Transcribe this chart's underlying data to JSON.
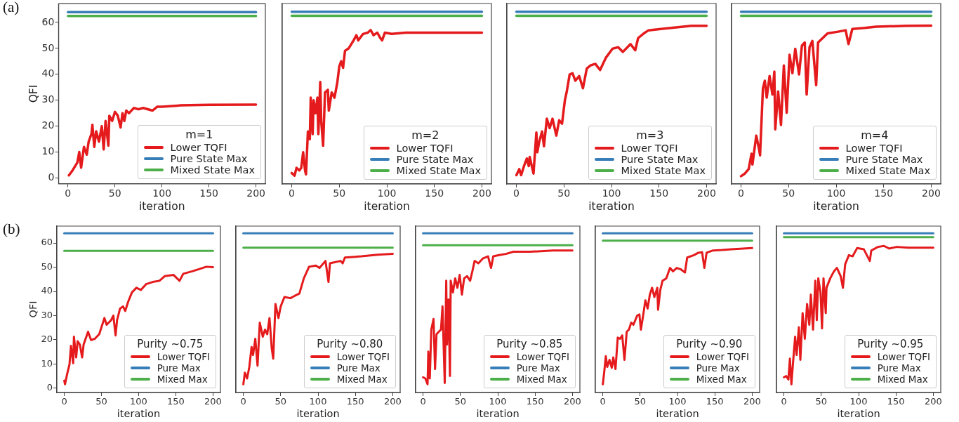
{
  "chart_data": [
    {
      "type": "line",
      "annotations": [
        "(a)"
      ],
      "xlabel": "iteration",
      "ylabel": "QFI",
      "legend": "bottom right",
      "legend_title": "m=1",
      "xlim": [
        -10,
        210
      ],
      "xticks": [
        0,
        50,
        100,
        150,
        200
      ],
      "ylim": [
        -2.2,
        67.2
      ],
      "yticks": [
        0,
        10,
        20,
        30,
        40,
        50,
        60
      ],
      "series": [
        {
          "name": "Lower TQFI",
          "color": "#e41a1c",
          "x": [
            1,
            5,
            10,
            12,
            14,
            17,
            20,
            22,
            25,
            26,
            28,
            30,
            33,
            36,
            38,
            40,
            43,
            44,
            47,
            50,
            53,
            56,
            58,
            60,
            62,
            65,
            70,
            75,
            80,
            90,
            95,
            100,
            120,
            150,
            200
          ],
          "values": [
            1,
            3,
            6,
            10,
            4,
            12,
            9,
            14,
            17,
            20.5,
            12,
            18,
            14,
            20,
            11,
            22,
            12.5,
            24,
            22,
            25.5,
            24,
            19.5,
            25,
            22,
            26,
            25,
            27,
            26.5,
            27,
            26,
            27.5,
            27.5,
            28,
            28.2,
            28.3
          ]
        },
        {
          "name": "Pure State Max",
          "color": "#377eb8",
          "x": [
            0,
            200
          ],
          "values": [
            64,
            64
          ]
        },
        {
          "name": "Mixed State Max",
          "color": "#4daf4a",
          "x": [
            0,
            200
          ],
          "values": [
            62.5,
            62.5
          ]
        }
      ]
    },
    {
      "type": "line",
      "xlabel": "iteration",
      "legend": "bottom right",
      "legend_title": "m=2",
      "tick_labels": "x",
      "xlim": [
        -10,
        210
      ],
      "xticks": [
        0,
        50,
        100,
        150,
        200
      ],
      "ylim": [
        -2.2,
        67.2
      ],
      "series": [
        {
          "name": "Lower TQFI",
          "color": "#e41a1c",
          "x": [
            0,
            3,
            5,
            8,
            10,
            12,
            14,
            15,
            17,
            19,
            20,
            22,
            23,
            25,
            27,
            28,
            30,
            31,
            33,
            35,
            38,
            39,
            42,
            45,
            48,
            50,
            52,
            54,
            56,
            60,
            65,
            68,
            70,
            75,
            80,
            83,
            86,
            90,
            93,
            95,
            98,
            105,
            120,
            200
          ],
          "values": [
            2,
            1,
            4,
            3,
            4,
            10,
            3,
            1.5,
            18,
            15,
            31,
            17,
            30,
            25,
            31,
            17,
            37,
            22,
            12.5,
            33,
            34,
            26,
            33,
            31,
            37,
            43,
            45,
            42.5,
            49,
            50,
            53,
            55,
            53,
            55.5,
            56,
            57,
            55,
            56,
            54,
            53,
            56,
            55.5,
            56,
            56
          ]
        },
        {
          "name": "Pure State Max",
          "color": "#377eb8",
          "x": [
            0,
            200
          ],
          "values": [
            64,
            64
          ]
        },
        {
          "name": "Mixed State Max",
          "color": "#4daf4a",
          "x": [
            0,
            200
          ],
          "values": [
            62.5,
            62.5
          ]
        }
      ]
    },
    {
      "type": "line",
      "xlabel": "iteration",
      "legend": "bottom right",
      "legend_title": "m=3",
      "tick_labels": "x",
      "xlim": [
        -10,
        210
      ],
      "xticks": [
        0,
        50,
        100,
        150,
        200
      ],
      "ylim": [
        -2.2,
        67.2
      ],
      "series": [
        {
          "name": "Lower TQFI",
          "color": "#e41a1c",
          "x": [
            0,
            3,
            5,
            8,
            11,
            13,
            14,
            18,
            21,
            22,
            24,
            27,
            29,
            32,
            35,
            38,
            42,
            45,
            48,
            51,
            53,
            56,
            59,
            62,
            66,
            70,
            74,
            78,
            83,
            88,
            94,
            101,
            107,
            112,
            120,
            125,
            128,
            134,
            139,
            152,
            168,
            184,
            200
          ],
          "values": [
            1.2,
            3.5,
            1.2,
            4.7,
            7.6,
            4.7,
            8.2,
            1.8,
            17.6,
            10,
            14,
            18,
            12.3,
            22.9,
            19.3,
            22.9,
            16.4,
            22.3,
            21,
            30,
            33.4,
            39.9,
            40.4,
            37.5,
            39.3,
            34.6,
            42.2,
            43.4,
            44,
            41.6,
            46.3,
            49.8,
            50.4,
            48.6,
            51.6,
            49.2,
            53.9,
            55.7,
            56.9,
            57.4,
            58,
            58.6,
            58.6
          ]
        },
        {
          "name": "Pure State Max",
          "color": "#377eb8",
          "x": [
            0,
            200
          ],
          "values": [
            64,
            64
          ]
        },
        {
          "name": "Mixed State Max",
          "color": "#4daf4a",
          "x": [
            0,
            200
          ],
          "values": [
            62.5,
            62.5
          ]
        }
      ]
    },
    {
      "type": "line",
      "xlabel": "iteration",
      "legend": "bottom right",
      "legend_title": "m=4",
      "tick_labels": "x",
      "xlim": [
        -10,
        210
      ],
      "xticks": [
        0,
        50,
        100,
        150,
        200
      ],
      "ylim": [
        -2.2,
        67.2
      ],
      "series": [
        {
          "name": "Lower TQFI",
          "color": "#e41a1c",
          "x": [
            0,
            4,
            8,
            11,
            12,
            16,
            19,
            20,
            23,
            25,
            27,
            30,
            33,
            35,
            36,
            39,
            42,
            45,
            48,
            51,
            54,
            57,
            61,
            64,
            67,
            69,
            72,
            75,
            79,
            81,
            91,
            101,
            110,
            113,
            117,
            130,
            142,
            174,
            200
          ],
          "values": [
            0.8,
            1.8,
            3.5,
            9.4,
            5.3,
            16.4,
            11.1,
            8.8,
            34.6,
            37.5,
            31,
            39.3,
            32.2,
            41,
            18.8,
            33.4,
            20.5,
            43.4,
            25.2,
            47.5,
            40.4,
            49.8,
            39.9,
            51,
            52.2,
            32.2,
            50.4,
            52.8,
            35.8,
            52.2,
            55.7,
            56.3,
            56.9,
            51.6,
            57.4,
            57.8,
            58.3,
            58.6,
            58.7
          ]
        },
        {
          "name": "Pure State Max",
          "color": "#377eb8",
          "x": [
            0,
            200
          ],
          "values": [
            64,
            64
          ]
        },
        {
          "name": "Mixed State Max",
          "color": "#4daf4a",
          "x": [
            0,
            200
          ],
          "values": [
            62.5,
            62.5
          ]
        }
      ]
    },
    {
      "type": "line",
      "annotations": [
        "(b)"
      ],
      "xlabel": "iteration",
      "ylabel": "QFI",
      "legend": "bottom right",
      "legend_title": "Purity ~0.75",
      "xlim": [
        -10,
        210
      ],
      "xticks": [
        0,
        50,
        100,
        150,
        200
      ],
      "ylim": [
        -1.8,
        67
      ],
      "yticks": [
        0,
        10,
        20,
        30,
        40,
        50,
        60
      ],
      "series": [
        {
          "name": "Lower TQFI",
          "color": "#e41a1c",
          "x": [
            0,
            1,
            4,
            7,
            9,
            12,
            13,
            16,
            18,
            21,
            24,
            26,
            32,
            36,
            41,
            47,
            54,
            57,
            63,
            66,
            69,
            71,
            75,
            79,
            82,
            86,
            91,
            97,
            103,
            110,
            119,
            128,
            135,
            147,
            155,
            160,
            172,
            181,
            191,
            200
          ],
          "values": [
            3.1,
            1.6,
            6,
            9.8,
            17.5,
            10.3,
            21.3,
            12.7,
            19.4,
            18,
            12.7,
            18,
            23.3,
            19.9,
            20.4,
            22.3,
            29,
            26.2,
            28.1,
            30,
            21.8,
            28.1,
            32.9,
            33.8,
            31.9,
            35.8,
            39.6,
            41.5,
            40.6,
            43,
            43.9,
            44.4,
            46.3,
            46.8,
            44.4,
            47.3,
            48.3,
            49.2,
            50.2,
            50
          ]
        },
        {
          "name": "Pure Max",
          "color": "#377eb8",
          "x": [
            0,
            200
          ],
          "values": [
            64,
            64
          ]
        },
        {
          "name": "Mixed Max",
          "color": "#4daf4a",
          "x": [
            0,
            200
          ],
          "values": [
            56.8,
            56.8
          ]
        }
      ]
    },
    {
      "type": "line",
      "xlabel": "iteration",
      "legend": "bottom right",
      "legend_title": "Purity ~0.80",
      "tick_labels": "x",
      "xlim": [
        -10,
        210
      ],
      "xticks": [
        0,
        50,
        100,
        150,
        200
      ],
      "ylim": [
        -1.8,
        67
      ],
      "series": [
        {
          "name": "Lower TQFI",
          "color": "#e41a1c",
          "x": [
            0,
            2,
            5,
            8,
            11,
            13,
            16,
            19,
            22,
            26,
            29,
            32,
            35,
            38,
            40,
            43,
            47,
            50,
            55,
            63,
            69,
            75,
            81,
            88,
            97,
            102,
            110,
            114,
            116,
            130,
            133,
            136,
            158,
            180,
            200
          ],
          "values": [
            1.6,
            6.4,
            4,
            8.8,
            17,
            13.7,
            20.4,
            9.3,
            27.1,
            21.3,
            24.2,
            22.3,
            29,
            16.5,
            12.2,
            34.8,
            29,
            33.8,
            37.7,
            37.2,
            38.2,
            39.1,
            45.4,
            50.2,
            50.7,
            49.7,
            52.6,
            43.9,
            51.6,
            52.6,
            51.6,
            54,
            54.5,
            55.2,
            55.5
          ]
        },
        {
          "name": "Pure Max",
          "color": "#377eb8",
          "x": [
            0,
            200
          ],
          "values": [
            64,
            64
          ]
        },
        {
          "name": "Mixed Max",
          "color": "#4daf4a",
          "x": [
            0,
            200
          ],
          "values": [
            58.1,
            58.1
          ]
        }
      ]
    },
    {
      "type": "line",
      "xlabel": "iteration",
      "legend": "bottom right",
      "legend_title": "Purity ~0.85",
      "tick_labels": "x",
      "xlim": [
        -10,
        210
      ],
      "xticks": [
        0,
        50,
        100,
        150,
        200
      ],
      "ylim": [
        -1.8,
        67
      ],
      "series": [
        {
          "name": "Lower TQFI",
          "color": "#e41a1c",
          "x": [
            0,
            3,
            6,
            7,
            9,
            11,
            14,
            16,
            18,
            21,
            24,
            26,
            29,
            31,
            32,
            34,
            36,
            37,
            40,
            43,
            46,
            49,
            52,
            55,
            59,
            63,
            66,
            69,
            74,
            80,
            87,
            91,
            94,
            102,
            111,
            121,
            143,
            174,
            200
          ],
          "values": [
            4.5,
            4,
            1.6,
            15.1,
            4,
            24.2,
            28.6,
            7.9,
            22.3,
            23.3,
            24.2,
            33.8,
            2.1,
            44.4,
            18,
            36.7,
            5,
            44.4,
            39.6,
            45.4,
            41.5,
            46.8,
            38.7,
            45.4,
            46.3,
            44.4,
            48.3,
            52.6,
            51.6,
            53.6,
            54.5,
            49.7,
            54.5,
            55,
            55.5,
            56.4,
            56.4,
            56.9,
            56.9
          ]
        },
        {
          "name": "Pure Max",
          "color": "#377eb8",
          "x": [
            0,
            200
          ],
          "values": [
            64,
            64
          ]
        },
        {
          "name": "Mixed Max",
          "color": "#4daf4a",
          "x": [
            0,
            200
          ],
          "values": [
            59.1,
            59.1
          ]
        }
      ]
    },
    {
      "type": "line",
      "xlabel": "iteration",
      "legend": "bottom right",
      "legend_title": "Purity ~0.90",
      "tick_labels": "x",
      "xlim": [
        -10,
        210
      ],
      "xticks": [
        0,
        50,
        100,
        150,
        200
      ],
      "ylim": [
        -1.8,
        67
      ],
      "series": [
        {
          "name": "Lower TQFI",
          "color": "#e41a1c",
          "x": [
            0,
            2,
            4,
            6,
            9,
            12,
            14,
            17,
            20,
            23,
            26,
            29,
            32,
            35,
            38,
            41,
            46,
            49,
            51,
            54,
            57,
            60,
            63,
            66,
            69,
            73,
            74,
            77,
            80,
            85,
            90,
            94,
            99,
            104,
            110,
            113,
            122,
            128,
            133,
            136,
            139,
            147,
            160,
            172,
            188,
            200
          ],
          "values": [
            1.6,
            6.9,
            13.2,
            8.8,
            11.7,
            8.4,
            12.7,
            7.9,
            20.9,
            20.4,
            21.8,
            11.7,
            23.3,
            24.2,
            27.1,
            26.2,
            30,
            30.5,
            24.2,
            30,
            36.3,
            32.9,
            38.7,
            41.5,
            37.7,
            41.5,
            32.4,
            40.6,
            44.4,
            45.4,
            49.7,
            48.3,
            49.7,
            49.2,
            47.8,
            54,
            55,
            56,
            56.2,
            49.7,
            56,
            56.9,
            57.1,
            57.4,
            57.7,
            57.9
          ]
        },
        {
          "name": "Pure Max",
          "color": "#377eb8",
          "x": [
            0,
            200
          ],
          "values": [
            64,
            64
          ]
        },
        {
          "name": "Mixed Max",
          "color": "#4daf4a",
          "x": [
            0,
            200
          ],
          "values": [
            61,
            61
          ]
        }
      ]
    },
    {
      "type": "line",
      "xlabel": "iteration",
      "legend": "bottom right",
      "legend_title": "Purity ~0.95",
      "tick_labels": "x",
      "xlim": [
        -10,
        210
      ],
      "xticks": [
        0,
        50,
        100,
        150,
        200
      ],
      "ylim": [
        -1.8,
        67
      ],
      "series": [
        {
          "name": "Lower TQFI",
          "color": "#e41a1c",
          "x": [
            0,
            3,
            6,
            8,
            10,
            12,
            15,
            17,
            20,
            22,
            25,
            28,
            31,
            34,
            36,
            39,
            42,
            44,
            46,
            49,
            51,
            53,
            56,
            57,
            62,
            67,
            71,
            76,
            79,
            82,
            87,
            92,
            98,
            107,
            115,
            117,
            126,
            134,
            141,
            151,
            166,
            200
          ],
          "values": [
            4.5,
            5,
            3.6,
            12.2,
            1.6,
            9.8,
            21.3,
            13.7,
            25.2,
            11.7,
            31,
            20.4,
            34.8,
            26.2,
            38.7,
            24.2,
            44.4,
            28.1,
            45.4,
            39.6,
            24.7,
            45.4,
            31,
            41.5,
            45.4,
            48.3,
            49.7,
            46.3,
            41.5,
            51.2,
            55,
            54.5,
            57.9,
            57.4,
            52.6,
            56.9,
            58.4,
            58.8,
            57.7,
            58.4,
            58.1,
            58.1
          ]
        },
        {
          "name": "Pure Max",
          "color": "#377eb8",
          "x": [
            0,
            200
          ],
          "values": [
            64,
            64
          ]
        },
        {
          "name": "Mixed Max",
          "color": "#4daf4a",
          "x": [
            0,
            200
          ],
          "values": [
            62.4,
            62.4
          ]
        }
      ]
    }
  ]
}
